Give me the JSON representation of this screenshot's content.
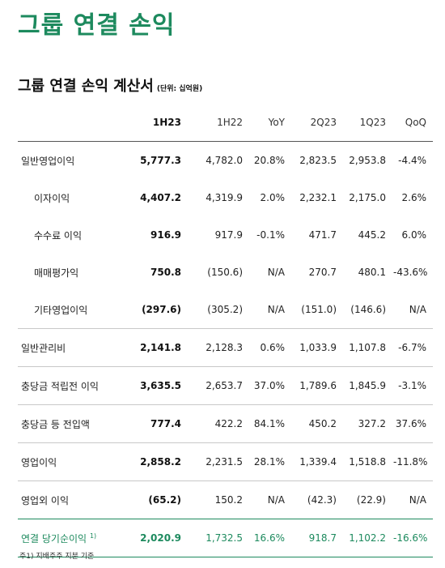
{
  "page_title": "그룹 연결 손익",
  "section_title": "그룹 연결 손익 계산서",
  "unit_note": "(단위: 십억원)",
  "columns": [
    "1H23",
    "1H22",
    "YoY",
    "2Q23",
    "1Q23",
    "QoQ"
  ],
  "rows": [
    {
      "label": "일반영업이익",
      "values": [
        "5,777.3",
        "4,782.0",
        "20.8%",
        "2,823.5",
        "2,953.8",
        "-4.4%"
      ]
    },
    {
      "label": "이자이익",
      "values": [
        "4,407.2",
        "4,319.9",
        "2.0%",
        "2,232.1",
        "2,175.0",
        "2.6%"
      ]
    },
    {
      "label": "수수료 이익",
      "values": [
        "916.9",
        "917.9",
        "-0.1%",
        "471.7",
        "445.2",
        "6.0%"
      ]
    },
    {
      "label": "매매평가익",
      "values": [
        "750.8",
        "(150.6)",
        "N/A",
        "270.7",
        "480.1",
        "-43.6%"
      ]
    },
    {
      "label": "기타영업이익",
      "values": [
        "(297.6)",
        "(305.2)",
        "N/A",
        "(151.0)",
        "(146.6)",
        "N/A"
      ]
    },
    {
      "label": "일반관리비",
      "values": [
        "2,141.8",
        "2,128.3",
        "0.6%",
        "1,033.9",
        "1,107.8",
        "-6.7%"
      ]
    },
    {
      "label": "충당금 적립전 이익",
      "values": [
        "3,635.5",
        "2,653.7",
        "37.0%",
        "1,789.6",
        "1,845.9",
        "-3.1%"
      ]
    },
    {
      "label": "충당금 등 전입액",
      "values": [
        "777.4",
        "422.2",
        "84.1%",
        "450.2",
        "327.2",
        "37.6%"
      ]
    },
    {
      "label": "영업이익",
      "values": [
        "2,858.2",
        "2,231.5",
        "28.1%",
        "1,339.4",
        "1,518.8",
        "-11.8%"
      ]
    },
    {
      "label": "영업외 이익",
      "values": [
        "(65.2)",
        "150.2",
        "N/A",
        "(42.3)",
        "(22.9)",
        "N/A"
      ]
    },
    {
      "label": "연결 당기순이익",
      "label_sup": "1)",
      "values": [
        "2,020.9",
        "1,732.5",
        "16.6%",
        "918.7",
        "1,102.2",
        "-16.6%"
      ]
    }
  ],
  "footnote": "주1) 지배주주 지분 기준",
  "colors": {
    "accent": "#1d8a5e",
    "text": "#222222"
  }
}
